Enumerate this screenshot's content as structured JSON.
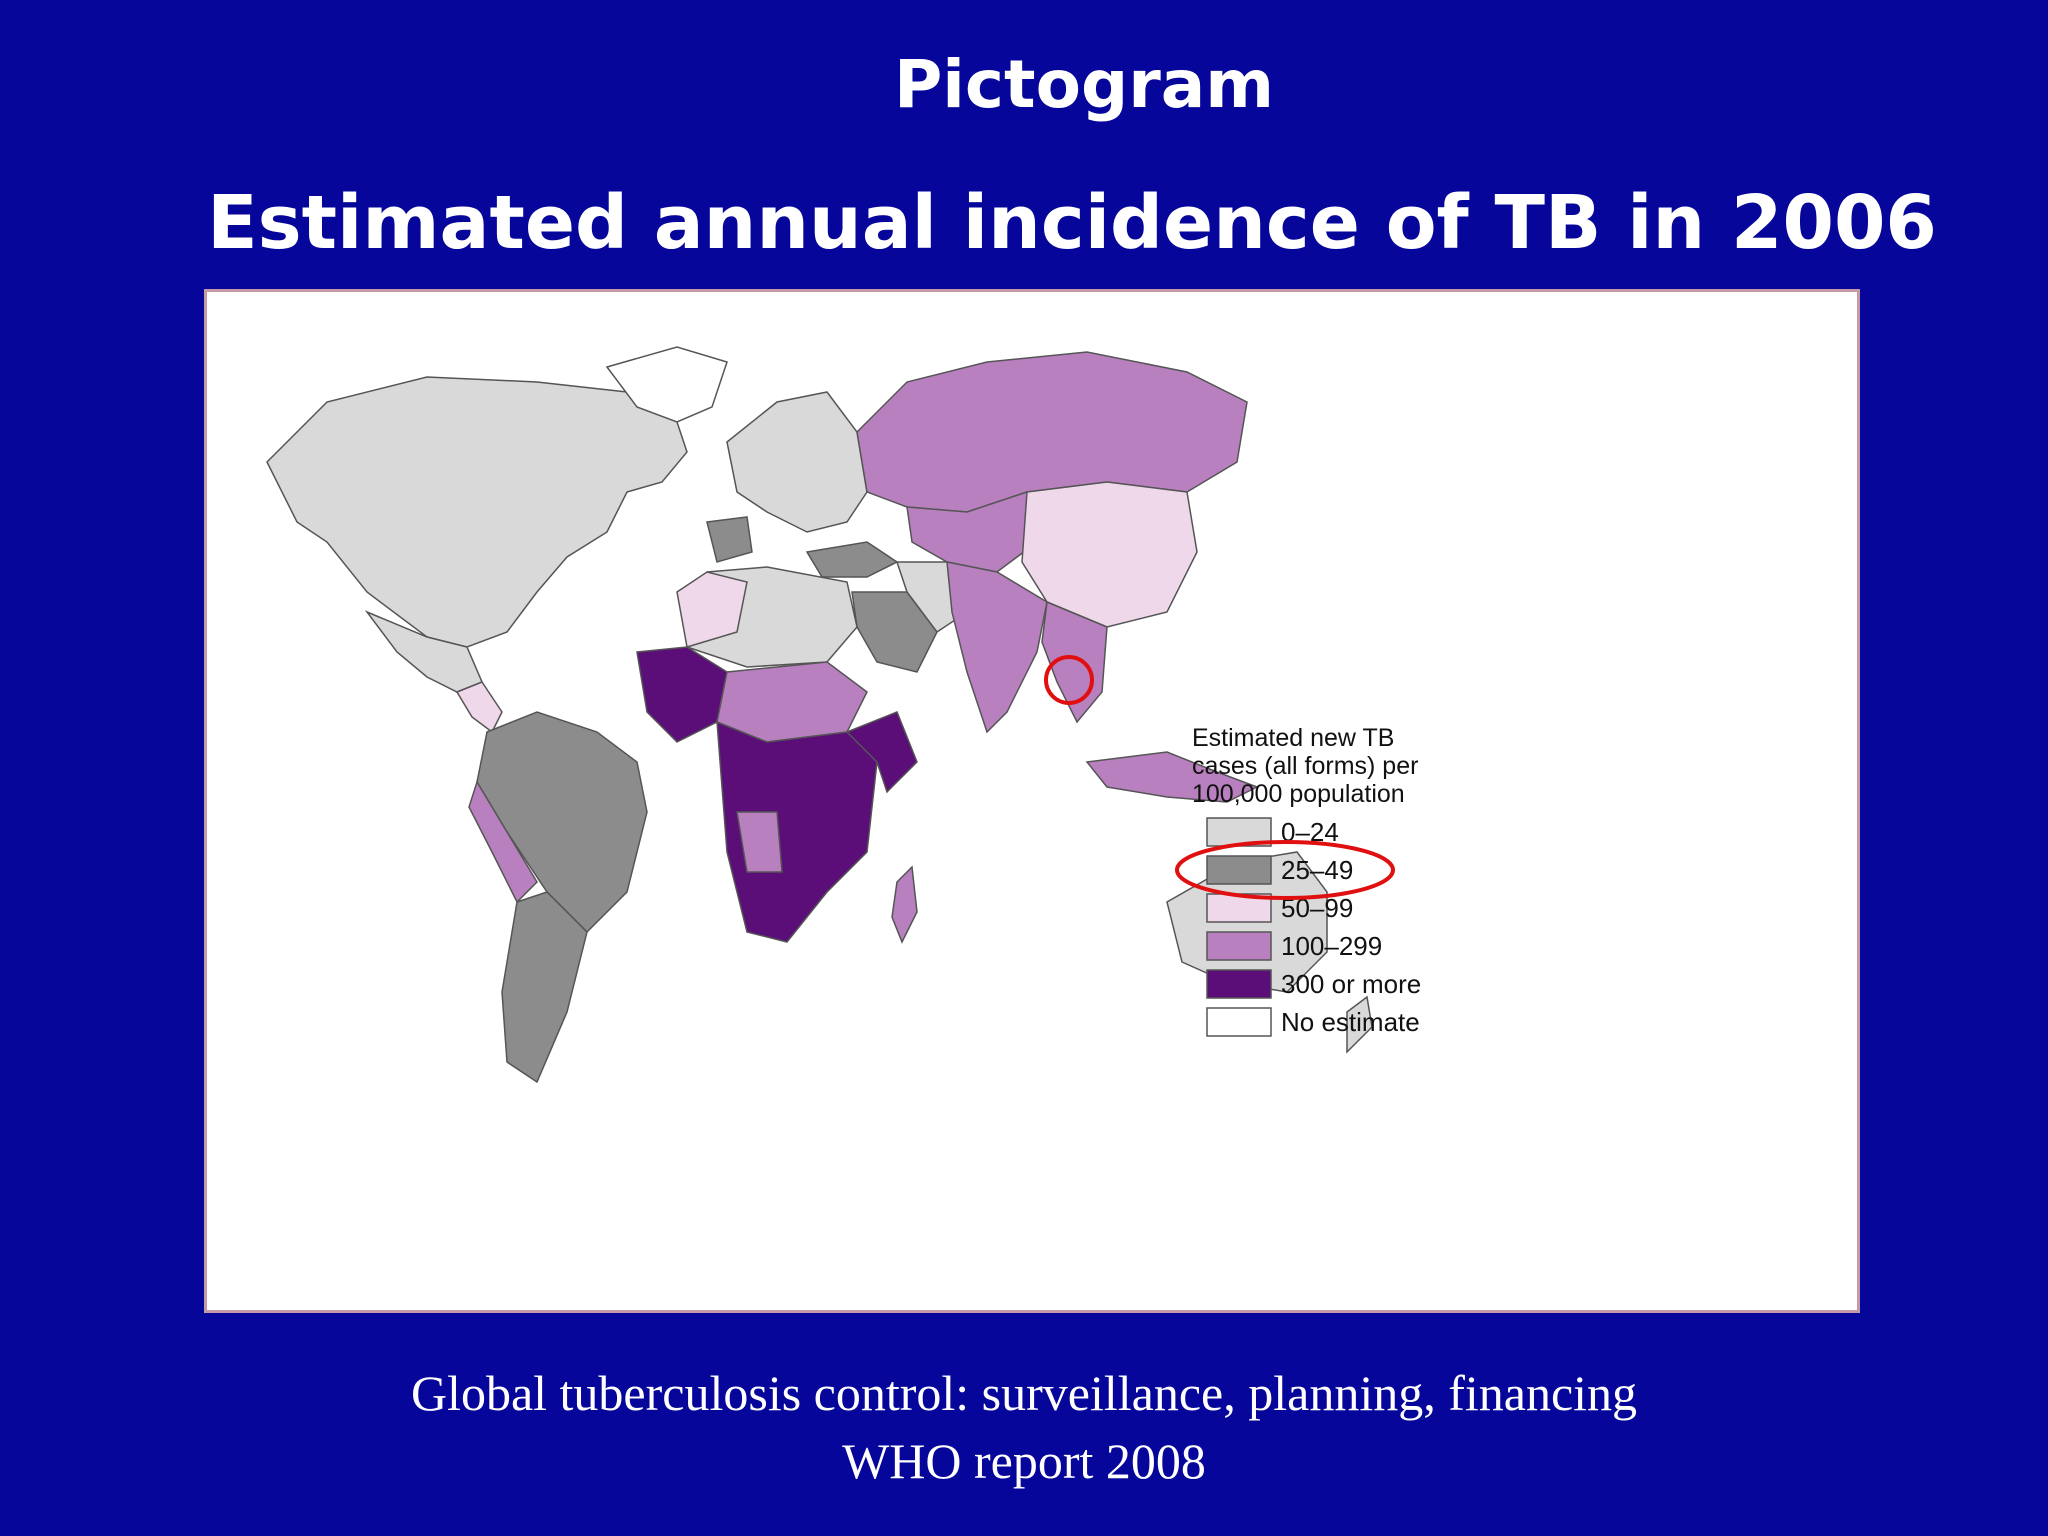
{
  "slide": {
    "title": "Pictogram",
    "subtitle": "Estimated annual incidence of TB in 2006",
    "caption_line1": "Global tuberculosis control: surveillance, planning, financing",
    "caption_line2": "WHO report 2008"
  },
  "legend": {
    "title_lines": [
      "Estimated new TB",
      "cases (all forms) per",
      "100,000 population"
    ],
    "items": [
      {
        "label": "0–24",
        "color": "#d9d9d9"
      },
      {
        "label": "25–49",
        "color": "#8c8c8c"
      },
      {
        "label": "50–99",
        "color": "#eed8ea"
      },
      {
        "label": "100–299",
        "color": "#b980c0"
      },
      {
        "label": "300 or more",
        "color": "#5c0e78"
      },
      {
        "label": "No estimate",
        "color": "#ffffff"
      }
    ],
    "highlighted_item": "25–49"
  },
  "annotations": {
    "highlight_color": "#e01010"
  }
}
